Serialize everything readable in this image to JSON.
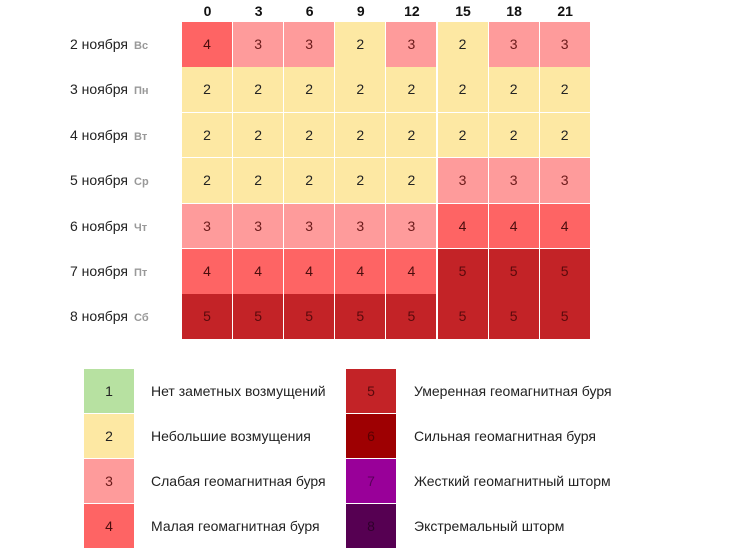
{
  "chart_data": {
    "type": "heatmap",
    "title": "",
    "xlabel": "",
    "ylabel": "",
    "x": [
      "0",
      "3",
      "6",
      "9",
      "12",
      "15",
      "18",
      "21"
    ],
    "y": [
      {
        "date": "2 ноября",
        "dow": "Вс"
      },
      {
        "date": "3 ноября",
        "dow": "Пн"
      },
      {
        "date": "4 ноября",
        "dow": "Вт"
      },
      {
        "date": "5 ноября",
        "dow": "Ср"
      },
      {
        "date": "6 ноября",
        "dow": "Чт"
      },
      {
        "date": "7 ноября",
        "dow": "Пт"
      },
      {
        "date": "8 ноября",
        "dow": "Сб"
      }
    ],
    "values": [
      [
        4,
        3,
        3,
        2,
        3,
        2,
        3,
        3
      ],
      [
        2,
        2,
        2,
        2,
        2,
        2,
        2,
        2
      ],
      [
        2,
        2,
        2,
        2,
        2,
        2,
        2,
        2
      ],
      [
        2,
        2,
        2,
        2,
        2,
        3,
        3,
        3
      ],
      [
        3,
        3,
        3,
        3,
        3,
        4,
        4,
        4
      ],
      [
        4,
        4,
        4,
        4,
        4,
        5,
        5,
        5
      ],
      [
        5,
        5,
        5,
        5,
        5,
        5,
        5,
        5
      ]
    ],
    "legend": [
      {
        "level": "1",
        "label": "Нет заметных возмущений",
        "color": "#b7e1a1",
        "text_color": "#222222"
      },
      {
        "level": "2",
        "label": "Небольшие возмущения",
        "color": "#fde8a3",
        "text_color": "#222222"
      },
      {
        "level": "3",
        "label": "Слабая геомагнитная буря",
        "color": "#fe9b9b",
        "text_color": "#6b1a1a"
      },
      {
        "level": "4",
        "label": "Малая геомагнитная буря",
        "color": "#fe6464",
        "text_color": "#4a0d0d"
      },
      {
        "level": "5",
        "label": "Умеренная геомагнитная буря",
        "color": "#c32327",
        "text_color": "#5a0a0c"
      },
      {
        "level": "6",
        "label": "Сильная геомагнитная буря",
        "color": "#9e0002",
        "text_color": "#5a0001"
      },
      {
        "level": "7",
        "label": "Жесткий геомагнитный шторм",
        "color": "#990099",
        "text_color": "#5a005a"
      },
      {
        "level": "8",
        "label": "Экстремальный шторм",
        "color": "#560052",
        "text_color": "#2f002c"
      }
    ],
    "legend_position": "bottom"
  }
}
